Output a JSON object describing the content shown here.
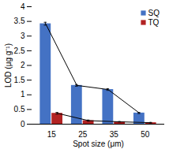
{
  "chart_data": {
    "type": "bar",
    "categories": [
      "15",
      "25",
      "35",
      "50"
    ],
    "series": [
      {
        "name": "SQ",
        "color": "#4472C4",
        "values": [
          3.42,
          1.32,
          1.18,
          0.38
        ],
        "errors": [
          0.05,
          0.03,
          0.03,
          0.02
        ]
      },
      {
        "name": "TQ",
        "color": "#B22222",
        "values": [
          0.37,
          0.12,
          0.08,
          0.05
        ],
        "errors": [
          0.03,
          0.02,
          0.01,
          0.01
        ]
      }
    ],
    "xlabel": "Spot size (μm)",
    "ylabel": "LOD (μg g⁻¹)",
    "ylim": [
      0,
      4.0
    ],
    "yticks": [
      0.0,
      0.5,
      1.0,
      1.5,
      2.0,
      2.5,
      3.0,
      3.5,
      4.0
    ],
    "grid": false,
    "legend": "upper right"
  }
}
